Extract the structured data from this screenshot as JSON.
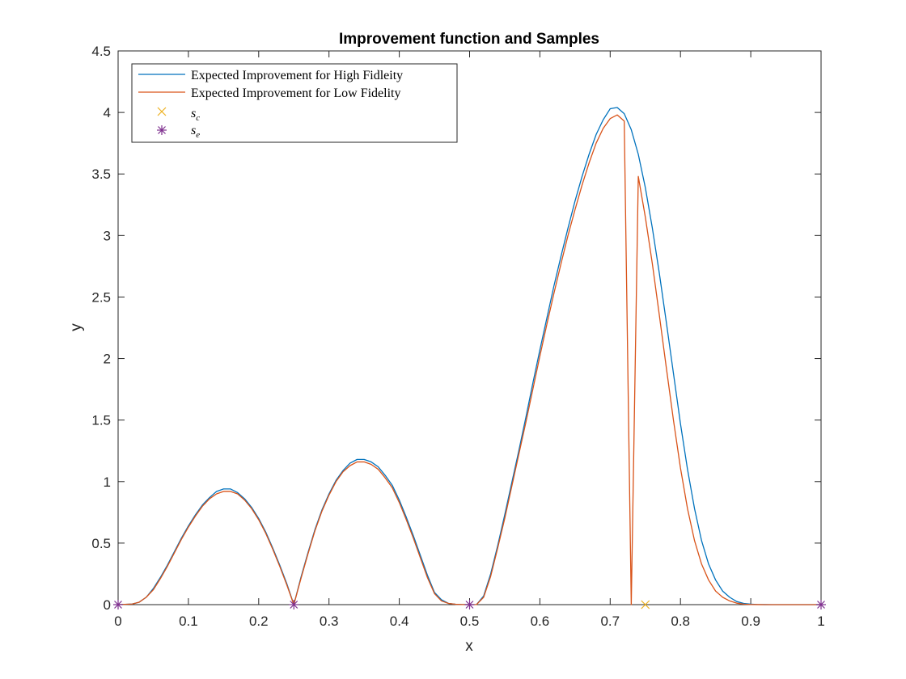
{
  "chart_data": {
    "type": "line",
    "title": "Improvement function and Samples",
    "xlabel": "x",
    "ylabel": "y",
    "xlim": [
      0,
      1
    ],
    "ylim": [
      0,
      4.5
    ],
    "xticks": [
      0,
      0.1,
      0.2,
      0.3,
      0.4,
      0.5,
      0.6,
      0.7,
      0.8,
      0.9,
      1
    ],
    "xtick_labels": [
      "0",
      "0.1",
      "0.2",
      "0.3",
      "0.4",
      "0.5",
      "0.6",
      "0.7",
      "0.8",
      "0.9",
      "1"
    ],
    "yticks": [
      0,
      0.5,
      1,
      1.5,
      2,
      2.5,
      3,
      3.5,
      4,
      4.5
    ],
    "ytick_labels": [
      "0",
      "0.5",
      "1",
      "1.5",
      "2",
      "2.5",
      "3",
      "3.5",
      "4",
      "4.5"
    ],
    "grid": false,
    "legend_position": "top-left",
    "series": [
      {
        "name": "Expected Improvement for High Fidleity",
        "kind": "line",
        "color": "#0072BD",
        "x": [
          0,
          0.02,
          0.03,
          0.04,
          0.05,
          0.06,
          0.07,
          0.08,
          0.09,
          0.1,
          0.11,
          0.12,
          0.13,
          0.14,
          0.15,
          0.16,
          0.17,
          0.18,
          0.19,
          0.2,
          0.21,
          0.22,
          0.23,
          0.24,
          0.25,
          0.26,
          0.27,
          0.28,
          0.29,
          0.3,
          0.31,
          0.32,
          0.33,
          0.34,
          0.35,
          0.36,
          0.37,
          0.38,
          0.39,
          0.4,
          0.41,
          0.42,
          0.43,
          0.44,
          0.45,
          0.46,
          0.47,
          0.48,
          0.49,
          0.5,
          0.51,
          0.52,
          0.53,
          0.54,
          0.55,
          0.56,
          0.57,
          0.58,
          0.59,
          0.6,
          0.61,
          0.62,
          0.63,
          0.64,
          0.65,
          0.66,
          0.67,
          0.68,
          0.69,
          0.7,
          0.71,
          0.72,
          0.73,
          0.74,
          0.75,
          0.76,
          0.77,
          0.78,
          0.79,
          0.8,
          0.81,
          0.82,
          0.83,
          0.84,
          0.85,
          0.86,
          0.87,
          0.88,
          0.89,
          0.9,
          0.91,
          0.92,
          0.93,
          0.95,
          1.0
        ],
        "y": [
          0,
          0.005,
          0.02,
          0.06,
          0.13,
          0.22,
          0.32,
          0.43,
          0.54,
          0.64,
          0.73,
          0.81,
          0.87,
          0.92,
          0.94,
          0.94,
          0.91,
          0.86,
          0.79,
          0.7,
          0.59,
          0.46,
          0.32,
          0.17,
          0,
          0.22,
          0.42,
          0.61,
          0.77,
          0.9,
          1.01,
          1.09,
          1.15,
          1.18,
          1.18,
          1.16,
          1.12,
          1.05,
          0.97,
          0.85,
          0.71,
          0.56,
          0.4,
          0.24,
          0.1,
          0.04,
          0.01,
          0.003,
          0.001,
          0,
          0.001,
          0.07,
          0.25,
          0.48,
          0.73,
          0.99,
          1.25,
          1.52,
          1.8,
          2.07,
          2.33,
          2.59,
          2.83,
          3.06,
          3.28,
          3.48,
          3.66,
          3.82,
          3.94,
          4.03,
          4.04,
          3.99,
          3.86,
          3.66,
          3.39,
          3.06,
          2.69,
          2.29,
          1.88,
          1.47,
          1.1,
          0.78,
          0.52,
          0.33,
          0.2,
          0.11,
          0.06,
          0.025,
          0.01,
          0.004,
          0.001,
          0.0005,
          0,
          0,
          0
        ]
      },
      {
        "name": "Expected Improvement for Low Fidelity",
        "kind": "line",
        "color": "#D95319",
        "x": [
          0,
          0.02,
          0.03,
          0.04,
          0.05,
          0.06,
          0.07,
          0.08,
          0.09,
          0.1,
          0.11,
          0.12,
          0.13,
          0.14,
          0.15,
          0.16,
          0.17,
          0.18,
          0.19,
          0.2,
          0.21,
          0.22,
          0.23,
          0.24,
          0.25,
          0.26,
          0.27,
          0.28,
          0.29,
          0.3,
          0.31,
          0.32,
          0.33,
          0.34,
          0.35,
          0.36,
          0.37,
          0.38,
          0.39,
          0.4,
          0.41,
          0.42,
          0.43,
          0.44,
          0.45,
          0.46,
          0.47,
          0.48,
          0.49,
          0.5,
          0.51,
          0.52,
          0.53,
          0.54,
          0.55,
          0.56,
          0.57,
          0.58,
          0.59,
          0.6,
          0.61,
          0.62,
          0.63,
          0.64,
          0.65,
          0.66,
          0.67,
          0.68,
          0.69,
          0.7,
          0.71,
          0.72,
          0.73,
          0.74,
          0.75,
          0.76,
          0.77,
          0.78,
          0.79,
          0.8,
          0.81,
          0.82,
          0.83,
          0.84,
          0.85,
          0.86,
          0.87,
          0.88,
          0.89,
          0.9,
          0.91,
          0.92,
          0.93,
          0.95,
          1.0
        ],
        "y": [
          0,
          0.005,
          0.02,
          0.06,
          0.12,
          0.21,
          0.31,
          0.42,
          0.53,
          0.63,
          0.72,
          0.8,
          0.86,
          0.9,
          0.92,
          0.92,
          0.9,
          0.85,
          0.78,
          0.69,
          0.58,
          0.45,
          0.31,
          0.16,
          0,
          0.21,
          0.41,
          0.6,
          0.76,
          0.89,
          1.0,
          1.08,
          1.13,
          1.16,
          1.16,
          1.14,
          1.1,
          1.03,
          0.95,
          0.83,
          0.69,
          0.54,
          0.38,
          0.22,
          0.09,
          0.03,
          0.01,
          0.003,
          0.001,
          0,
          0.001,
          0.06,
          0.23,
          0.46,
          0.7,
          0.96,
          1.22,
          1.48,
          1.75,
          2.02,
          2.28,
          2.53,
          2.77,
          3.0,
          3.21,
          3.41,
          3.59,
          3.75,
          3.87,
          3.95,
          3.98,
          3.93,
          0,
          3.48,
          3.15,
          2.77,
          2.35,
          1.92,
          1.5,
          1.11,
          0.78,
          0.52,
          0.33,
          0.2,
          0.11,
          0.06,
          0.03,
          0.012,
          0.004,
          0.001,
          0.0005,
          0,
          0,
          0,
          0
        ]
      },
      {
        "name": "s_c",
        "kind": "marker",
        "marker": "x",
        "color": "#EDB120",
        "x": [
          0.75
        ],
        "y": [
          0
        ]
      },
      {
        "name": "s_e",
        "kind": "marker",
        "marker": "asterisk",
        "color": "#7E2F8E",
        "x": [
          0,
          0.25,
          0.5,
          1
        ],
        "y": [
          0,
          0,
          0,
          0
        ]
      }
    ]
  }
}
